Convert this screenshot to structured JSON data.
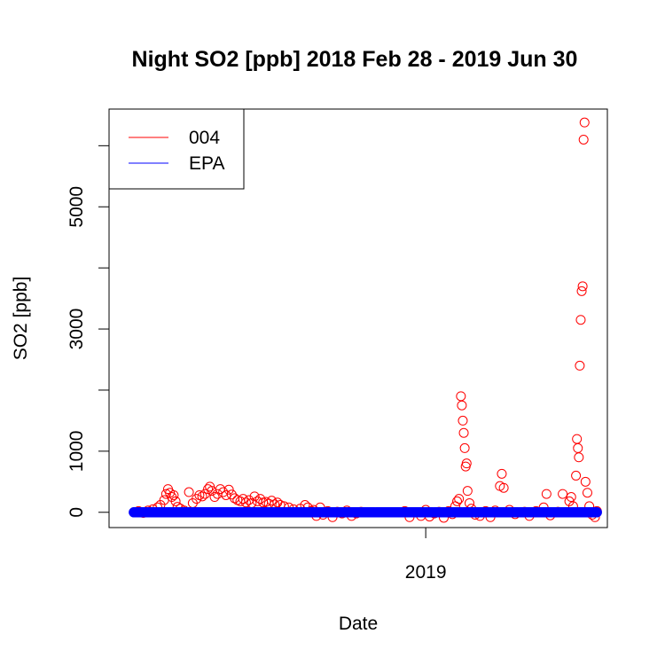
{
  "chart_data": {
    "type": "scatter",
    "title": "Night SO2 [ppb] 2018 Feb 28 - 2019 Jun 30",
    "xlabel": "Date",
    "ylabel": "SO2 [ppb]",
    "xlim": [
      "2018-02-02",
      "2019-07-11"
    ],
    "ylim": [
      -250,
      6600
    ],
    "y_ticks": [
      0,
      1000,
      2000,
      3000,
      4000,
      5000,
      6000
    ],
    "y_tick_labels": [
      {
        "value": 0,
        "label": "0"
      },
      {
        "value": 1000,
        "label": "1000"
      },
      {
        "value": 3000,
        "label": "3000"
      },
      {
        "value": 5000,
        "label": "5000"
      }
    ],
    "x_ticks": [
      {
        "value": "2019-01-01",
        "label": "2019"
      }
    ],
    "legend": {
      "position": "top-left",
      "entries": [
        {
          "name": "004",
          "color": "#ff0000"
        },
        {
          "name": "EPA",
          "color": "#0000ff"
        }
      ]
    },
    "series": [
      {
        "name": "004",
        "color": "#ff0000",
        "marker": "open-circle",
        "points": [
          [
            "2018-03-01",
            5
          ],
          [
            "2018-03-05",
            20
          ],
          [
            "2018-03-10",
            -10
          ],
          [
            "2018-03-15",
            30
          ],
          [
            "2018-03-20",
            50
          ],
          [
            "2018-03-25",
            80
          ],
          [
            "2018-03-28",
            120
          ],
          [
            "2018-04-01",
            200
          ],
          [
            "2018-04-03",
            300
          ],
          [
            "2018-04-05",
            380
          ],
          [
            "2018-04-07",
            320
          ],
          [
            "2018-04-09",
            250
          ],
          [
            "2018-04-11",
            280
          ],
          [
            "2018-04-13",
            180
          ],
          [
            "2018-04-15",
            90
          ],
          [
            "2018-04-18",
            60
          ],
          [
            "2018-04-22",
            30
          ],
          [
            "2018-04-27",
            330
          ],
          [
            "2018-05-01",
            150
          ],
          [
            "2018-05-05",
            220
          ],
          [
            "2018-05-08",
            280
          ],
          [
            "2018-05-11",
            260
          ],
          [
            "2018-05-14",
            300
          ],
          [
            "2018-05-17",
            380
          ],
          [
            "2018-05-19",
            420
          ],
          [
            "2018-05-21",
            350
          ],
          [
            "2018-05-24",
            250
          ],
          [
            "2018-05-27",
            300
          ],
          [
            "2018-05-30",
            380
          ],
          [
            "2018-06-02",
            330
          ],
          [
            "2018-06-05",
            280
          ],
          [
            "2018-06-08",
            370
          ],
          [
            "2018-06-11",
            290
          ],
          [
            "2018-06-14",
            230
          ],
          [
            "2018-06-17",
            200
          ],
          [
            "2018-06-20",
            180
          ],
          [
            "2018-06-23",
            220
          ],
          [
            "2018-06-26",
            160
          ],
          [
            "2018-06-29",
            200
          ],
          [
            "2018-07-02",
            150
          ],
          [
            "2018-07-05",
            260
          ],
          [
            "2018-07-08",
            180
          ],
          [
            "2018-07-11",
            220
          ],
          [
            "2018-07-14",
            160
          ],
          [
            "2018-07-17",
            170
          ],
          [
            "2018-07-20",
            140
          ],
          [
            "2018-07-23",
            190
          ],
          [
            "2018-07-26",
            130
          ],
          [
            "2018-07-29",
            160
          ],
          [
            "2018-08-01",
            120
          ],
          [
            "2018-08-05",
            100
          ],
          [
            "2018-08-10",
            80
          ],
          [
            "2018-08-15",
            50
          ],
          [
            "2018-08-22",
            60
          ],
          [
            "2018-08-27",
            120
          ],
          [
            "2018-08-30",
            80
          ],
          [
            "2018-09-03",
            20
          ],
          [
            "2018-09-05",
            40
          ],
          [
            "2018-09-08",
            -60
          ],
          [
            "2018-09-12",
            80
          ],
          [
            "2018-09-15",
            -40
          ],
          [
            "2018-09-20",
            20
          ],
          [
            "2018-09-25",
            -80
          ],
          [
            "2018-09-30",
            10
          ],
          [
            "2018-10-05",
            -20
          ],
          [
            "2018-10-10",
            30
          ],
          [
            "2018-10-15",
            -60
          ],
          [
            "2018-10-20",
            -20
          ],
          [
            "2018-10-25",
            10
          ],
          [
            "2018-12-10",
            20
          ],
          [
            "2018-12-15",
            -80
          ],
          [
            "2018-12-20",
            0
          ],
          [
            "2018-12-27",
            -60
          ],
          [
            "2019-01-01",
            40
          ],
          [
            "2019-01-05",
            -70
          ],
          [
            "2019-01-10",
            -20
          ],
          [
            "2019-01-15",
            10
          ],
          [
            "2019-01-20",
            -90
          ],
          [
            "2019-01-25",
            20
          ],
          [
            "2019-01-29",
            -30
          ],
          [
            "2019-02-01",
            100
          ],
          [
            "2019-02-03",
            180
          ],
          [
            "2019-02-05",
            220
          ],
          [
            "2019-02-07",
            1900
          ],
          [
            "2019-02-08",
            1750
          ],
          [
            "2019-02-09",
            1500
          ],
          [
            "2019-02-10",
            1300
          ],
          [
            "2019-02-11",
            1050
          ],
          [
            "2019-02-12",
            750
          ],
          [
            "2019-02-13",
            800
          ],
          [
            "2019-02-14",
            350
          ],
          [
            "2019-02-16",
            150
          ],
          [
            "2019-02-18",
            60
          ],
          [
            "2019-02-22",
            -40
          ],
          [
            "2019-02-27",
            -60
          ],
          [
            "2019-03-05",
            20
          ],
          [
            "2019-03-10",
            -80
          ],
          [
            "2019-03-15",
            30
          ],
          [
            "2019-03-20",
            430
          ],
          [
            "2019-03-22",
            630
          ],
          [
            "2019-03-24",
            400
          ],
          [
            "2019-03-30",
            40
          ],
          [
            "2019-04-05",
            -30
          ],
          [
            "2019-04-15",
            10
          ],
          [
            "2019-04-20",
            -60
          ],
          [
            "2019-04-27",
            20
          ],
          [
            "2019-05-05",
            80
          ],
          [
            "2019-05-08",
            300
          ],
          [
            "2019-05-12",
            -50
          ],
          [
            "2019-05-20",
            10
          ],
          [
            "2019-05-25",
            300
          ],
          [
            "2019-06-01",
            180
          ],
          [
            "2019-06-03",
            250
          ],
          [
            "2019-06-05",
            100
          ],
          [
            "2019-06-08",
            600
          ],
          [
            "2019-06-09",
            1200
          ],
          [
            "2019-06-10",
            1050
          ],
          [
            "2019-06-11",
            900
          ],
          [
            "2019-06-12",
            2400
          ],
          [
            "2019-06-13",
            3150
          ],
          [
            "2019-06-14",
            3620
          ],
          [
            "2019-06-15",
            3700
          ],
          [
            "2019-06-16",
            6100
          ],
          [
            "2019-06-17",
            6380
          ],
          [
            "2019-06-18",
            500
          ],
          [
            "2019-06-20",
            320
          ],
          [
            "2019-06-22",
            100
          ],
          [
            "2019-06-25",
            -40
          ],
          [
            "2019-06-28",
            -80
          ],
          [
            "2019-06-30",
            20
          ]
        ]
      },
      {
        "name": "EPA",
        "color": "#0000ff",
        "marker": "open-circle",
        "points": [
          [
            "2018-02-28",
            0
          ],
          [
            "2018-03-10",
            0
          ],
          [
            "2018-03-20",
            0
          ],
          [
            "2018-03-30",
            0
          ],
          [
            "2018-04-10",
            0
          ],
          [
            "2018-04-20",
            0
          ],
          [
            "2018-04-30",
            0
          ],
          [
            "2018-05-10",
            0
          ],
          [
            "2018-05-20",
            0
          ],
          [
            "2018-05-30",
            0
          ],
          [
            "2018-06-10",
            0
          ],
          [
            "2018-06-20",
            0
          ],
          [
            "2018-06-30",
            0
          ],
          [
            "2018-07-10",
            0
          ],
          [
            "2018-07-20",
            0
          ],
          [
            "2018-07-30",
            0
          ],
          [
            "2018-08-10",
            0
          ],
          [
            "2018-08-20",
            0
          ],
          [
            "2018-08-30",
            0
          ],
          [
            "2018-09-10",
            0
          ],
          [
            "2018-09-20",
            0
          ],
          [
            "2018-09-30",
            0
          ],
          [
            "2018-10-10",
            0
          ],
          [
            "2018-10-20",
            0
          ],
          [
            "2018-10-30",
            0
          ],
          [
            "2018-11-10",
            0
          ],
          [
            "2018-11-20",
            0
          ],
          [
            "2018-11-30",
            0
          ],
          [
            "2018-12-10",
            0
          ],
          [
            "2018-12-20",
            0
          ],
          [
            "2018-12-30",
            0
          ],
          [
            "2019-01-10",
            0
          ],
          [
            "2019-01-20",
            0
          ],
          [
            "2019-01-30",
            0
          ],
          [
            "2019-02-10",
            0
          ],
          [
            "2019-02-20",
            0
          ],
          [
            "2019-03-01",
            0
          ],
          [
            "2019-03-10",
            0
          ],
          [
            "2019-03-20",
            0
          ],
          [
            "2019-03-30",
            0
          ],
          [
            "2019-04-10",
            0
          ],
          [
            "2019-04-20",
            0
          ],
          [
            "2019-04-30",
            0
          ],
          [
            "2019-05-10",
            0
          ],
          [
            "2019-05-20",
            0
          ],
          [
            "2019-05-30",
            0
          ],
          [
            "2019-06-10",
            0
          ],
          [
            "2019-06-20",
            0
          ],
          [
            "2019-06-30",
            0
          ]
        ]
      }
    ]
  }
}
